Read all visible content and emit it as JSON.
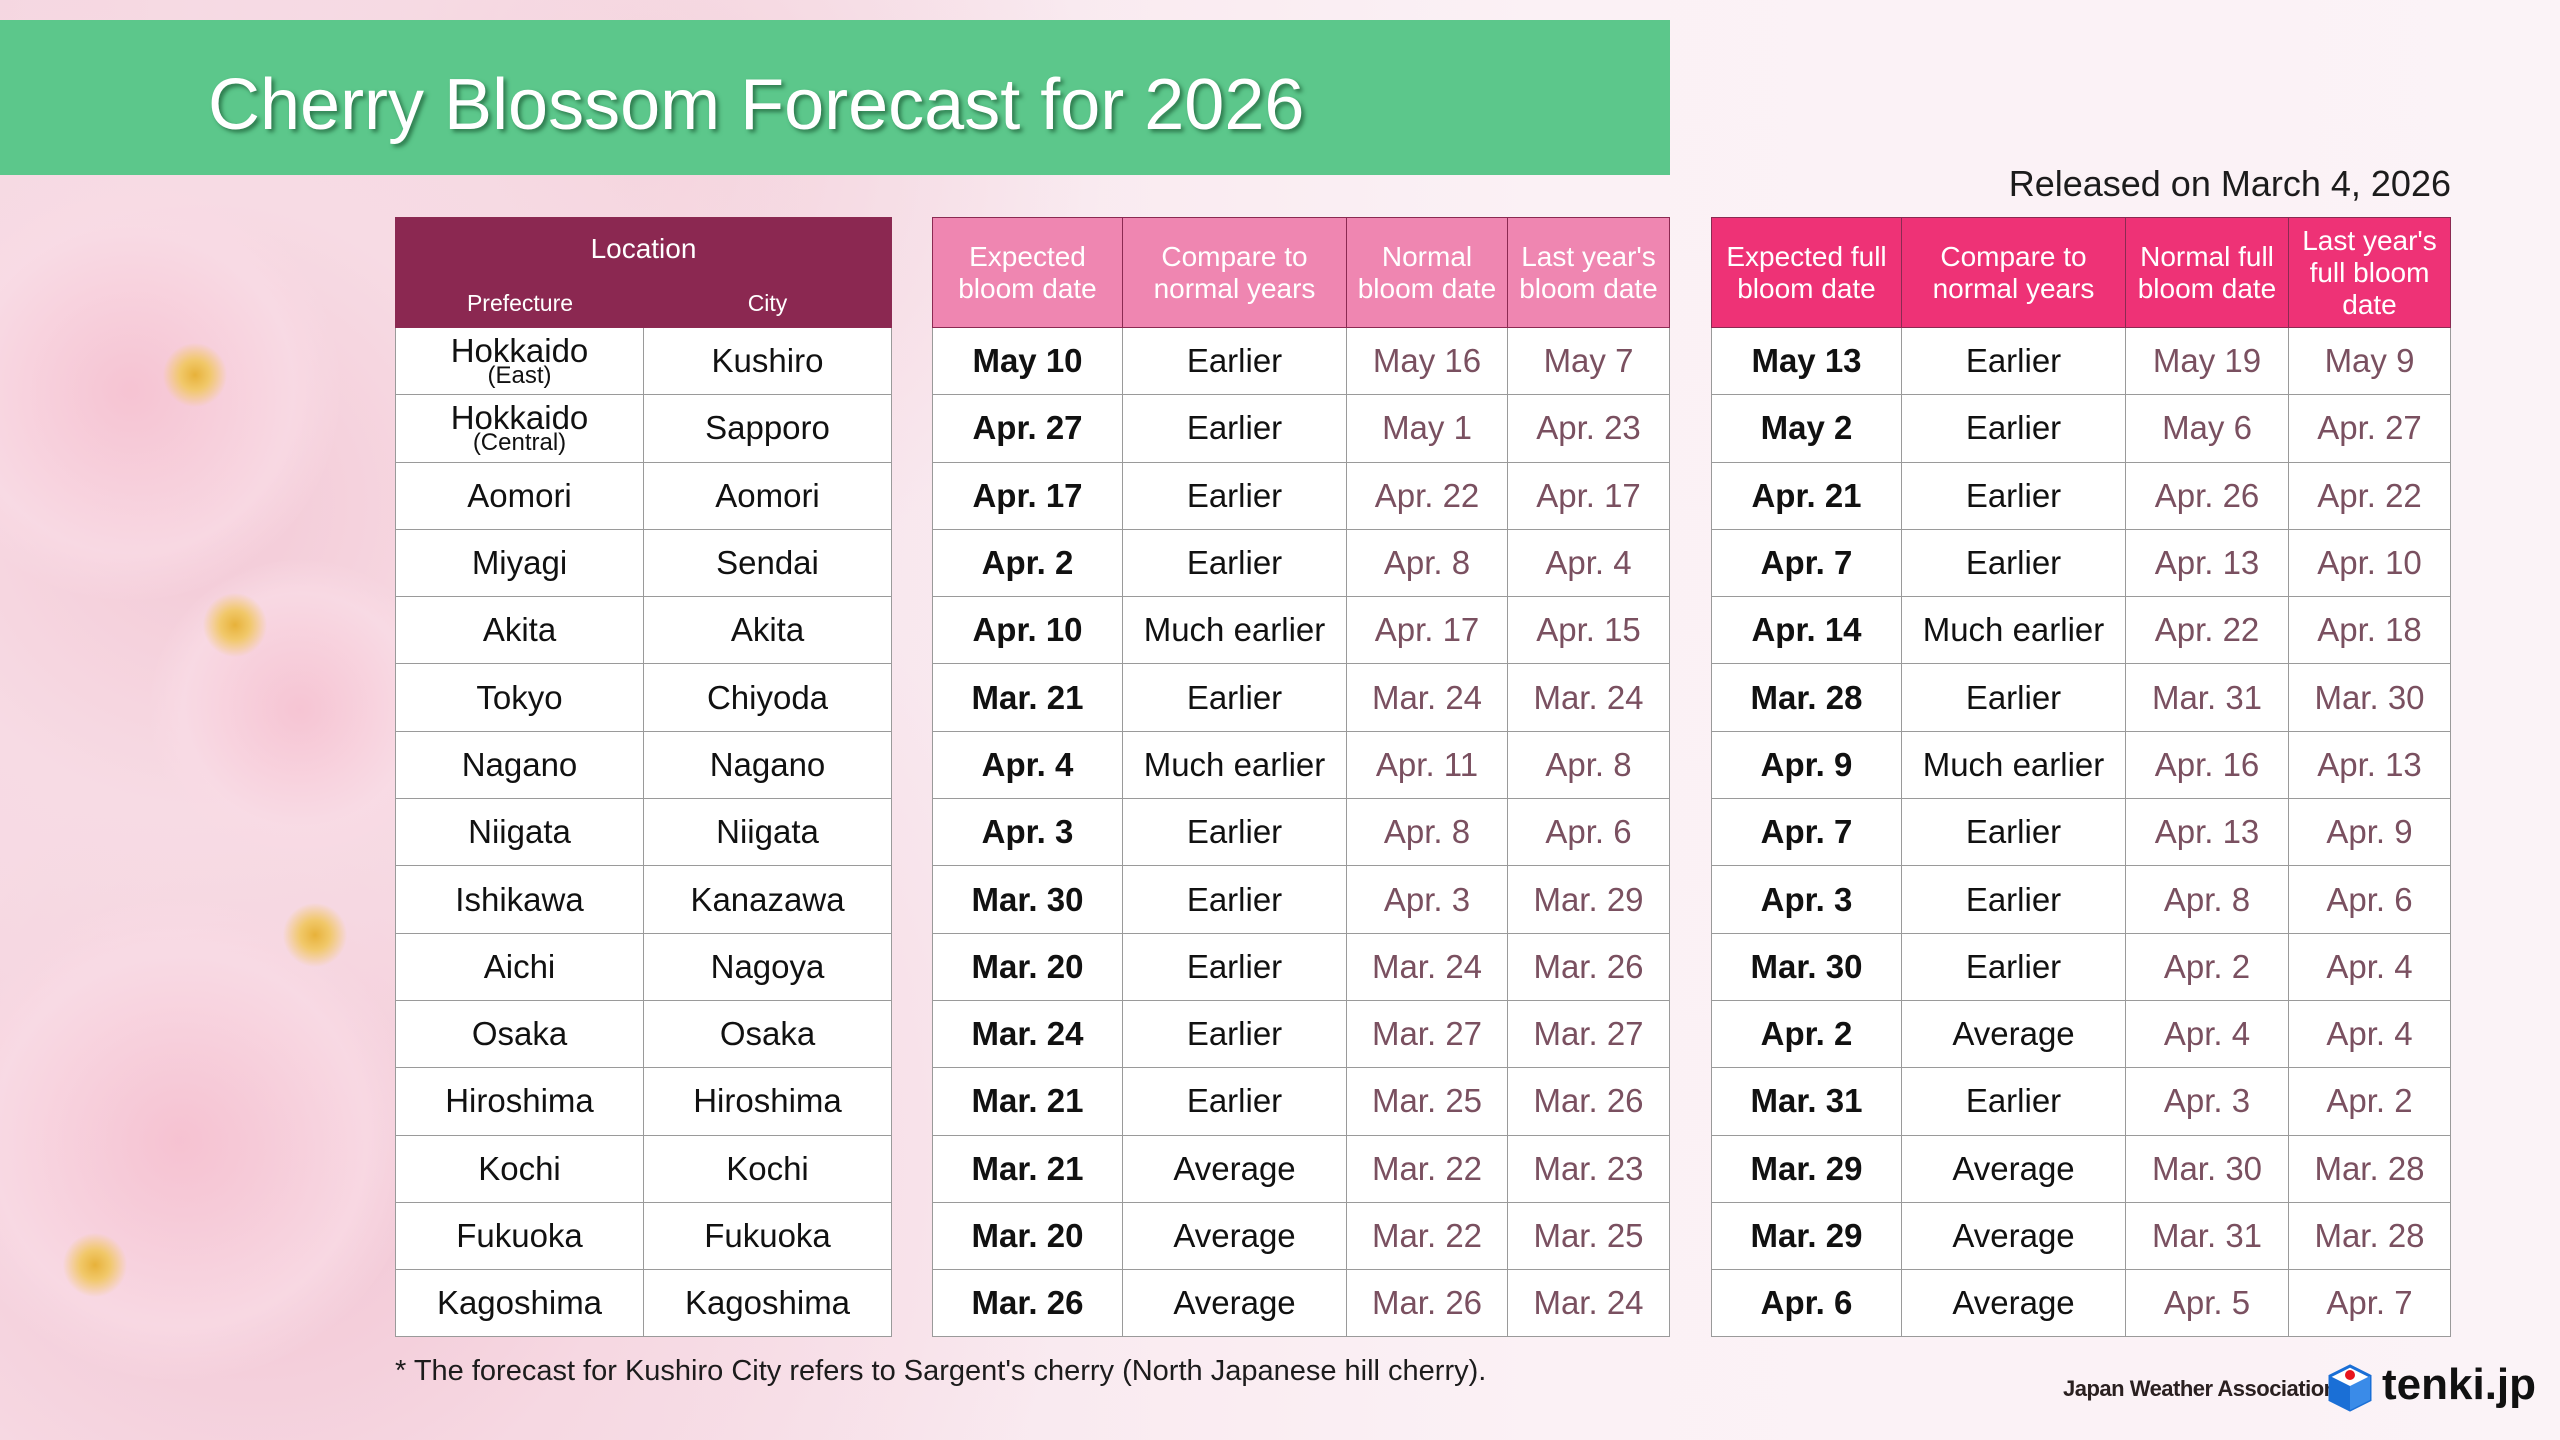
{
  "title": "Cherry Blossom Forecast for 2026",
  "released": "Released on March 4, 2026",
  "location_header": {
    "group": "Location",
    "prefecture": "Prefecture",
    "city": "City"
  },
  "bloom_headers": [
    "Expected bloom date",
    "Compare to normal years",
    "Normal bloom date",
    "Last year's bloom date"
  ],
  "full_headers": [
    "Expected full bloom date",
    "Compare to normal years",
    "Normal full bloom date",
    "Last year's full bloom date"
  ],
  "rows": [
    {
      "prefecture": "Hokkaido",
      "region": "(East)",
      "city": "Kushiro",
      "bloom": [
        "May 10",
        "Earlier",
        "May 16",
        "May 7"
      ],
      "full": [
        "May 13",
        "Earlier",
        "May 19",
        "May 9"
      ]
    },
    {
      "prefecture": "Hokkaido",
      "region": "(Central)",
      "city": "Sapporo",
      "bloom": [
        "Apr. 27",
        "Earlier",
        "May 1",
        "Apr. 23"
      ],
      "full": [
        "May 2",
        "Earlier",
        "May 6",
        "Apr. 27"
      ]
    },
    {
      "prefecture": "Aomori",
      "city": "Aomori",
      "bloom": [
        "Apr. 17",
        "Earlier",
        "Apr. 22",
        "Apr. 17"
      ],
      "full": [
        "Apr. 21",
        "Earlier",
        "Apr. 26",
        "Apr. 22"
      ]
    },
    {
      "prefecture": "Miyagi",
      "city": "Sendai",
      "bloom": [
        "Apr. 2",
        "Earlier",
        "Apr. 8",
        "Apr. 4"
      ],
      "full": [
        "Apr. 7",
        "Earlier",
        "Apr. 13",
        "Apr. 10"
      ]
    },
    {
      "prefecture": "Akita",
      "city": "Akita",
      "bloom": [
        "Apr. 10",
        "Much earlier",
        "Apr. 17",
        "Apr. 15"
      ],
      "full": [
        "Apr. 14",
        "Much earlier",
        "Apr. 22",
        "Apr. 18"
      ]
    },
    {
      "prefecture": "Tokyo",
      "city": "Chiyoda",
      "bloom": [
        "Mar. 21",
        "Earlier",
        "Mar. 24",
        "Mar. 24"
      ],
      "full": [
        "Mar. 28",
        "Earlier",
        "Mar. 31",
        "Mar. 30"
      ]
    },
    {
      "prefecture": "Nagano",
      "city": "Nagano",
      "bloom": [
        "Apr. 4",
        "Much earlier",
        "Apr. 11",
        "Apr. 8"
      ],
      "full": [
        "Apr. 9",
        "Much earlier",
        "Apr. 16",
        "Apr. 13"
      ]
    },
    {
      "prefecture": "Niigata",
      "city": "Niigata",
      "bloom": [
        "Apr. 3",
        "Earlier",
        "Apr. 8",
        "Apr. 6"
      ],
      "full": [
        "Apr. 7",
        "Earlier",
        "Apr. 13",
        "Apr. 9"
      ]
    },
    {
      "prefecture": "Ishikawa",
      "city": "Kanazawa",
      "bloom": [
        "Mar. 30",
        "Earlier",
        "Apr. 3",
        "Mar. 29"
      ],
      "full": [
        "Apr. 3",
        "Earlier",
        "Apr. 8",
        "Apr. 6"
      ]
    },
    {
      "prefecture": "Aichi",
      "city": "Nagoya",
      "bloom": [
        "Mar. 20",
        "Earlier",
        "Mar. 24",
        "Mar. 26"
      ],
      "full": [
        "Mar. 30",
        "Earlier",
        "Apr. 2",
        "Apr. 4"
      ]
    },
    {
      "prefecture": "Osaka",
      "city": "Osaka",
      "bloom": [
        "Mar. 24",
        "Earlier",
        "Mar. 27",
        "Mar. 27"
      ],
      "full": [
        "Apr. 2",
        "Average",
        "Apr. 4",
        "Apr. 4"
      ]
    },
    {
      "prefecture": "Hiroshima",
      "city": "Hiroshima",
      "bloom": [
        "Mar. 21",
        "Earlier",
        "Mar. 25",
        "Mar. 26"
      ],
      "full": [
        "Mar. 31",
        "Earlier",
        "Apr. 3",
        "Apr. 2"
      ]
    },
    {
      "prefecture": "Kochi",
      "city": "Kochi",
      "bloom": [
        "Mar. 21",
        "Average",
        "Mar. 22",
        "Mar. 23"
      ],
      "full": [
        "Mar. 29",
        "Average",
        "Mar. 30",
        "Mar. 28"
      ]
    },
    {
      "prefecture": "Fukuoka",
      "city": "Fukuoka",
      "bloom": [
        "Mar. 20",
        "Average",
        "Mar. 22",
        "Mar. 25"
      ],
      "full": [
        "Mar. 29",
        "Average",
        "Mar. 31",
        "Mar. 28"
      ]
    },
    {
      "prefecture": "Kagoshima",
      "city": "Kagoshima",
      "bloom": [
        "Mar. 26",
        "Average",
        "Mar. 26",
        "Mar. 24"
      ],
      "full": [
        "Apr. 6",
        "Average",
        "Apr. 5",
        "Apr. 7"
      ]
    }
  ],
  "footnote": "* The forecast for Kushiro City refers to Sargent's cherry (North Japanese hill cherry).",
  "footer": {
    "org": "Japan Weather Association",
    "brand": "tenki.jp"
  },
  "colors": {
    "banner": "#5cc78b",
    "location_header": "#8b2851",
    "bloom_header": "#ef86b1",
    "full_header": "#ee3276",
    "muted_date": "#7a5060"
  }
}
